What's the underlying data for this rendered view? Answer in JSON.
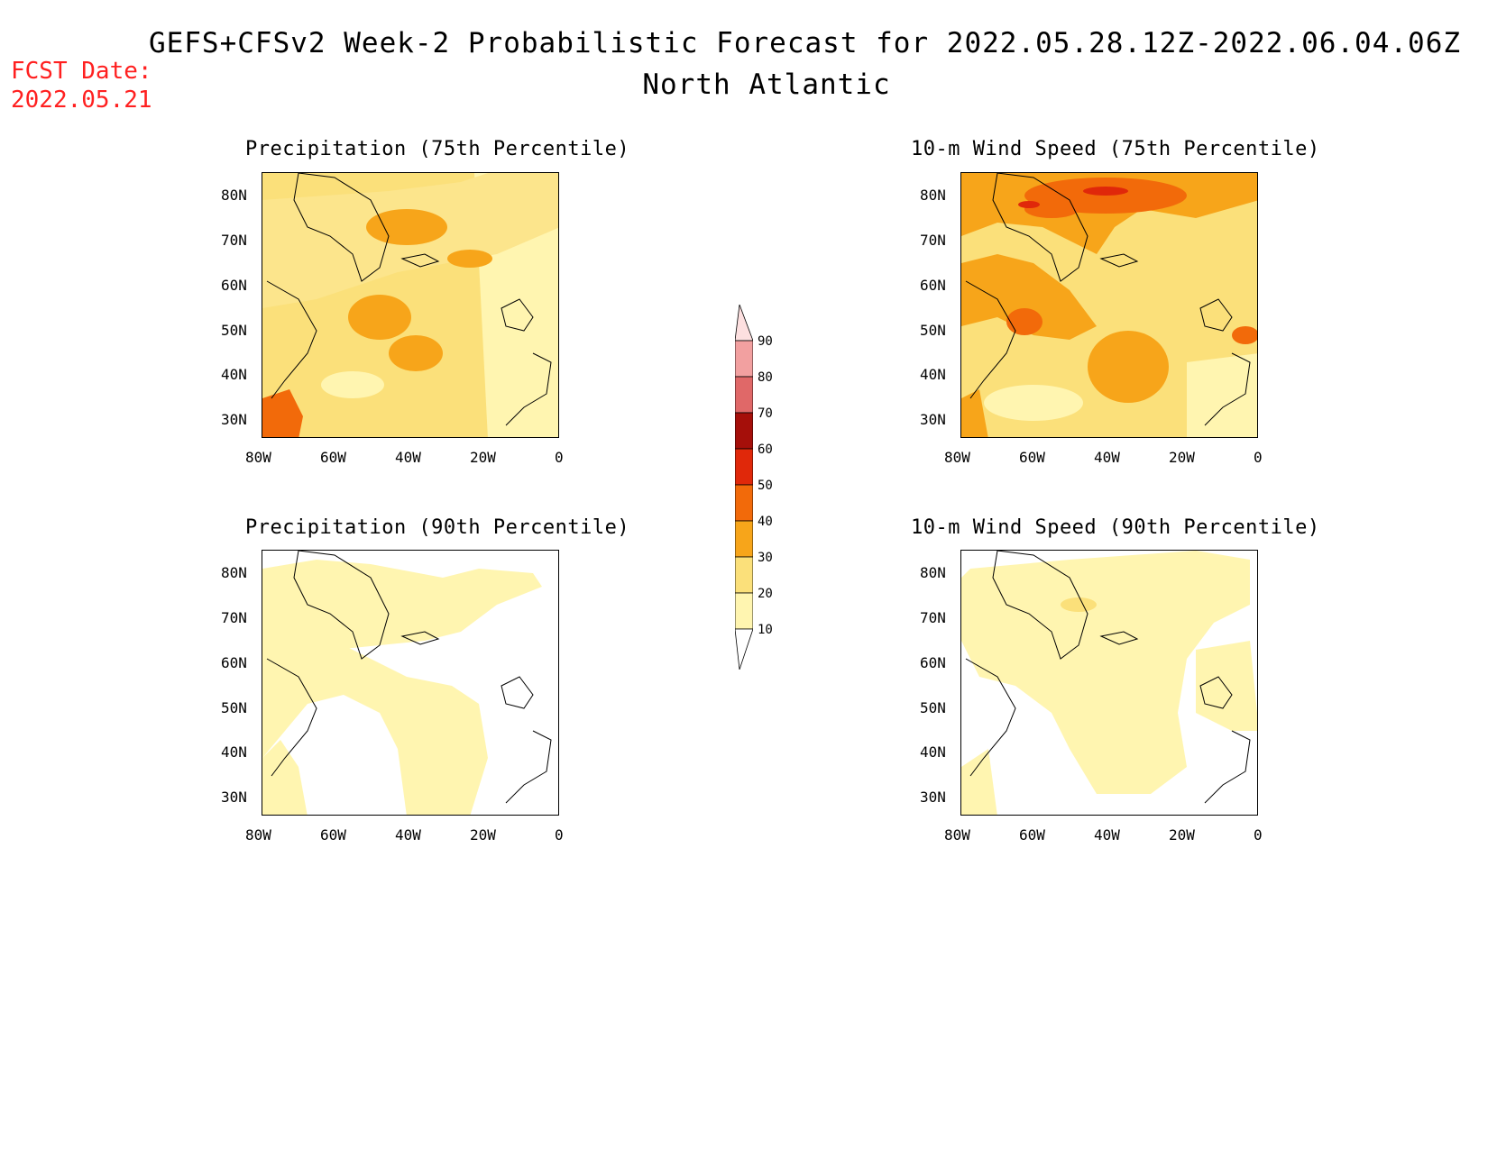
{
  "header": {
    "title": "GEFS+CFSv2 Week-2 Probabilistic Forecast for 2022.05.28.12Z-2022.06.04.06Z",
    "region": "North Atlantic",
    "fcst_label": "FCST Date:",
    "fcst_date": "2022.05.21"
  },
  "axes": {
    "lat_labels": [
      "80N",
      "70N",
      "60N",
      "50N",
      "40N",
      "30N"
    ],
    "lon_labels": [
      "80W",
      "60W",
      "40W",
      "20W",
      "0"
    ]
  },
  "panels": [
    {
      "id": "precip-75",
      "title": "Precipitation (75th Percentile)"
    },
    {
      "id": "wind-75",
      "title": "10-m Wind Speed (75th Percentile)"
    },
    {
      "id": "precip-90",
      "title": "Precipitation (90th Percentile)"
    },
    {
      "id": "wind-90",
      "title": "10-m Wind Speed (90th Percentile)"
    }
  ],
  "legend": {
    "levels": [
      "10",
      "20",
      "30",
      "40",
      "50",
      "60",
      "70",
      "80",
      "90"
    ],
    "colors": {
      "c10": "#fff5b0",
      "c20": "#fbe07a",
      "c30": "#f7a51a",
      "c40": "#f26a0a",
      "c50": "#e0280a",
      "c60": "#a50f0a",
      "c70": "#e06868",
      "c80": "#f2a0a0",
      "c90": "#fde0e0"
    }
  }
}
